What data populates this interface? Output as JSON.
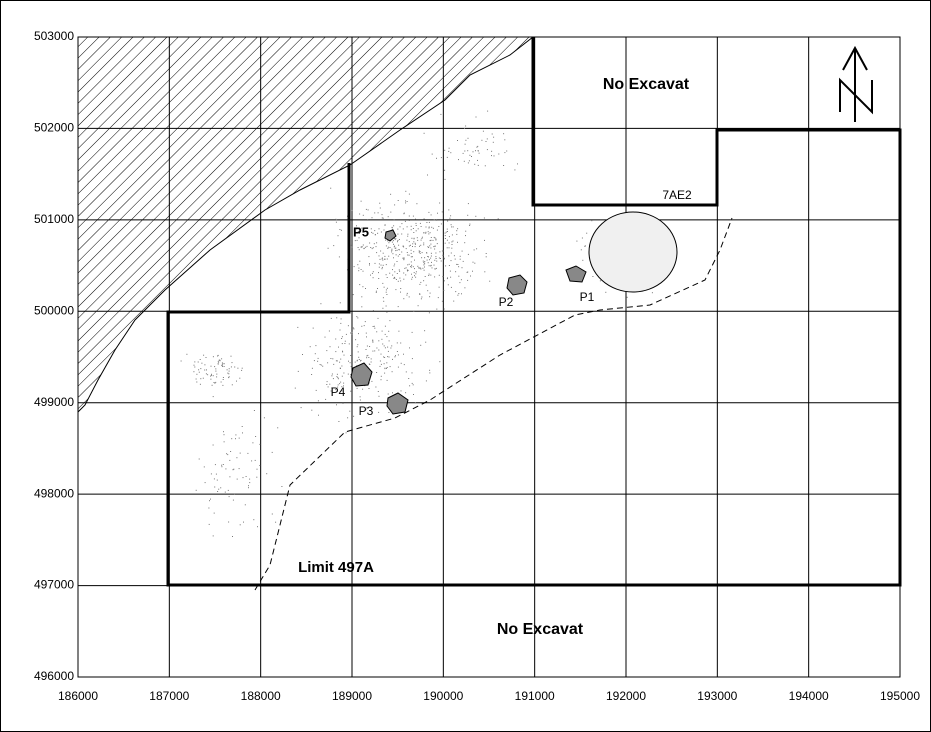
{
  "chart_data": {
    "type": "map",
    "xlim": [
      186000,
      195000
    ],
    "ylim": [
      496000,
      503000
    ],
    "xticks": [
      186000,
      187000,
      188000,
      189000,
      190000,
      191000,
      192000,
      193000,
      194000,
      195000
    ],
    "yticks": [
      496000,
      497000,
      498000,
      499000,
      500000,
      501000,
      502000,
      503000
    ],
    "grid": true,
    "annotations": [
      "No Excavat",
      "No Excavat",
      "7AE2",
      "P5",
      "P2",
      "P1",
      "P4",
      "P3",
      "Limit 497A"
    ]
  }
}
